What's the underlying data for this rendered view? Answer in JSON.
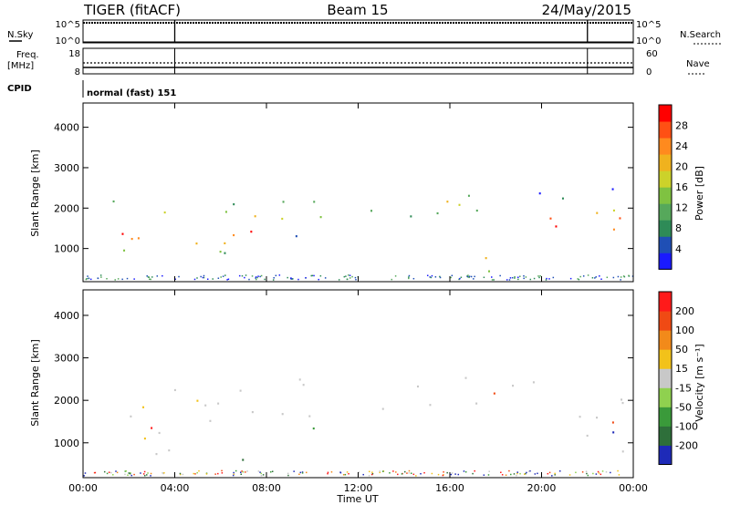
{
  "header": {
    "radar": "TIGER (fitACF)",
    "beam": "Beam 15",
    "date": "24/May/2015"
  },
  "strips": {
    "nsky_label": "N.Sky",
    "nsky_ticks": [
      "10^5",
      "10^0"
    ],
    "nsearch_label": "N.Search",
    "nsearch_ticks": [
      "10^5",
      "10^0"
    ],
    "freq_label_1": "Freq.",
    "freq_label_2": "[MHz]",
    "freq_ticks": [
      "18",
      "8"
    ],
    "nave_label": "Nave",
    "nave_ticks": [
      "60",
      "0"
    ],
    "cpid_label": "CPID",
    "cpid_text": "normal (fast) 151",
    "markers_hours": [
      4.0,
      22.0
    ]
  },
  "chart_data": [
    {
      "type": "heatmap",
      "panel": "power",
      "ylabel": "Slant Range [km]",
      "xlabel": "Time UT",
      "ylim": [
        180,
        4600
      ],
      "xlim_hours": [
        0,
        24
      ],
      "x_ticks": [
        "00:00",
        "04:00",
        "08:00",
        "12:00",
        "16:00",
        "20:00",
        "00:00"
      ],
      "y_ticks": [
        1000,
        2000,
        3000,
        4000
      ],
      "colorbar": {
        "label": "Power [dB]",
        "ticks": [
          "28",
          "24",
          "20",
          "16",
          "12",
          "8",
          "4"
        ],
        "colors": [
          "#1a1aff",
          "#1f4fb5",
          "#2e8b57",
          "#56a85b",
          "#7fc241",
          "#ccd22a",
          "#f0b21e",
          "#ff8a1e",
          "#ff5014",
          "#ff0000"
        ]
      },
      "bands": [
        {
          "x0": 0.0,
          "x1": 7.5,
          "y0": 600,
          "y1": 2400,
          "level": "high"
        },
        {
          "x0": 7.5,
          "x1": 10.5,
          "y0": 1200,
          "y1": 2600,
          "level": "mid"
        },
        {
          "x0": 12.5,
          "x1": 19.5,
          "y0": 1700,
          "y1": 2600,
          "level": "mid"
        },
        {
          "x0": 15.0,
          "x1": 17.8,
          "y0": 300,
          "y1": 1100,
          "level": "high"
        },
        {
          "x0": 19.5,
          "x1": 24.0,
          "y0": 800,
          "y1": 2500,
          "level": "high"
        }
      ]
    },
    {
      "type": "heatmap",
      "panel": "velocity",
      "ylabel": "Slant Range [km]",
      "xlabel": "Time UT",
      "ylim": [
        180,
        4600
      ],
      "xlim_hours": [
        0,
        24
      ],
      "x_ticks": [
        "00:00",
        "04:00",
        "08:00",
        "12:00",
        "16:00",
        "20:00",
        "00:00"
      ],
      "y_ticks": [
        1000,
        2000,
        3000,
        4000
      ],
      "colorbar": {
        "label": "Velocity [m s⁻¹]",
        "ticks": [
          "200",
          "100",
          "50",
          "15",
          "-15",
          "-50",
          "-100",
          "-200"
        ],
        "colors": [
          "#1e2ab8",
          "#2e6f3a",
          "#3a9a3a",
          "#8fd14f",
          "#c8c8c8",
          "#f2c21a",
          "#f28a1a",
          "#f04a14",
          "#ff1a1a"
        ]
      },
      "bands": [
        {
          "x0": 0.0,
          "x1": 7.5,
          "y0": 600,
          "y1": 2400,
          "level": "gray"
        },
        {
          "x0": 7.5,
          "x1": 10.5,
          "y0": 1200,
          "y1": 2600,
          "level": "gray"
        },
        {
          "x0": 12.5,
          "x1": 19.5,
          "y0": 1700,
          "y1": 2600,
          "level": "gray"
        },
        {
          "x0": 19.5,
          "x1": 24.0,
          "y0": 800,
          "y1": 2500,
          "level": "gray"
        }
      ]
    }
  ]
}
